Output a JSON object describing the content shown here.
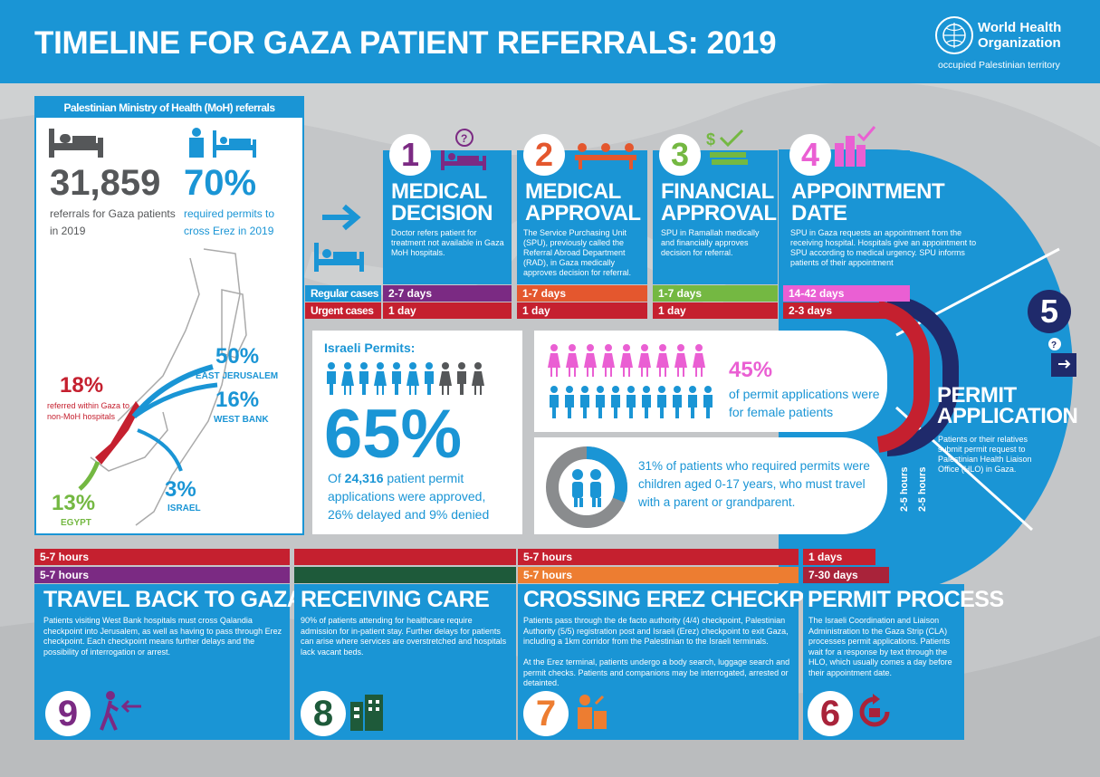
{
  "header": {
    "title": "TIMELINE FOR GAZA PATIENT REFERRALS: 2019",
    "org_line1": "World Health",
    "org_line2": "Organization",
    "org_sub": "occupied Palestinian territory"
  },
  "moh": {
    "title": "Palestinian Ministry of Health (MoH) referrals",
    "referrals_num": "31,859",
    "referrals_text": "referrals for Gaza patients in 2019",
    "permits_num": "70%",
    "permits_text": "required permits to cross Erez in 2019",
    "map": {
      "within_gaza_pct": "18%",
      "within_gaza_lbl": "referred within Gaza to non-MoH hospitals",
      "east_jerusalem_pct": "50%",
      "east_jerusalem_lbl": "EAST JERUSALEM",
      "west_bank_pct": "16%",
      "west_bank_lbl": "WEST BANK",
      "israel_pct": "3%",
      "israel_lbl": "ISRAEL",
      "egypt_pct": "13%",
      "egypt_lbl": "EGYPT"
    }
  },
  "case_labels": {
    "regular": "Regular cases",
    "urgent": "Urgent cases"
  },
  "steps_top": [
    {
      "num": "1",
      "title1": "MEDICAL",
      "title2": "DECISION",
      "desc": "Doctor refers patient for treatment not available in Gaza MoH hospitals.",
      "regular": "2-7 days",
      "urgent": "1 day",
      "color": "#7b2a83"
    },
    {
      "num": "2",
      "title1": "MEDICAL",
      "title2": "APPROVAL",
      "desc": "The Service Purchasing Unit (SPU), previously called the Referral Abroad Department (RAD), in Gaza medically approves decision for referral.",
      "regular": "1-7 days",
      "urgent": "1 day",
      "color": "#e4572e"
    },
    {
      "num": "3",
      "title1": "FINANCIAL",
      "title2": "APPROVAL",
      "desc": "SPU in Ramallah medically and financially approves decision for referral.",
      "regular": "1-7 days",
      "urgent": "1 day",
      "color": "#74b842"
    },
    {
      "num": "4",
      "title1": "APPOINTMENT",
      "title2": "DATE",
      "desc": "SPU in Gaza requests an appointment from the receiving hospital. Hospitals give an appointment to SPU according to medical urgency. SPU informs patients of their appointment",
      "regular": "14-42 days",
      "urgent": "2-3 days",
      "color": "#ea5fd3"
    }
  ],
  "step5": {
    "num": "5",
    "title1": "PERMIT",
    "title2": "APPLICATION",
    "desc": "Patients or their relatives submit permit request to Palestinian Health Liaison Office (HLO) in Gaza.",
    "regular": "2-5 hours",
    "urgent": "2-5 hours"
  },
  "israeli_permits": {
    "label": "Israeli Permits:",
    "pct": "65%",
    "text_pre": "Of",
    "total": "24,316",
    "text_post": "patient permit applications were approved, 26% delayed and 9% denied"
  },
  "female": {
    "pct": "45%",
    "text": "of permit applications were for female patients"
  },
  "children": {
    "text": "31% of patients who required permits were children aged 0-17 years, who must travel with a parent or grandparent."
  },
  "steps_bottom": [
    {
      "num": "9",
      "title": "TRAVEL BACK TO GAZA",
      "desc": "Patients visiting West Bank hospitals must cross Qalandia checkpoint into Jerusalem, as well as having to pass through Erez checkpoint. Each checkpoint means further delays and the possibility of interrogation or arrest.",
      "top": "5-7 hours",
      "bottom": "5-7 hours",
      "color": "#7b2a83"
    },
    {
      "num": "8",
      "title": "RECEIVING CARE",
      "desc": "90% of patients attending for healthcare require admission for in-patient stay. Further delays for patients can arise where services are overstretched and hospitals lack vacant beds.",
      "top": "",
      "bottom": "",
      "color": "#1e5a3a"
    },
    {
      "num": "7",
      "title": "CROSSING EREZ CHECKPOINT",
      "desc": "Patients pass through the de facto authority (4/4) checkpoint, Palestinian Authority (5/5) registration post and Israeli (Erez) checkpoint to exit Gaza, including a 1km corridor from the Palestinian to the Israeli terminals.",
      "desc2": "At the Erez terminal, patients undergo a body search, luggage search and permit checks. Patients and companions may be interrogated, arrested or detainted.",
      "top": "5-7 hours",
      "bottom": "5-7 hours",
      "color": "#ed7d31"
    },
    {
      "num": "6",
      "title": "PERMIT PROCESS",
      "desc": "The Israeli Coordination and Liaison Administration to the Gaza Strip (CLA) processes permit applications. Patients wait for a response by text through the HLO, which usually comes a day before their appointment date.",
      "top": "1 days",
      "bottom": "7-30 days",
      "color": "#a9233a"
    }
  ]
}
